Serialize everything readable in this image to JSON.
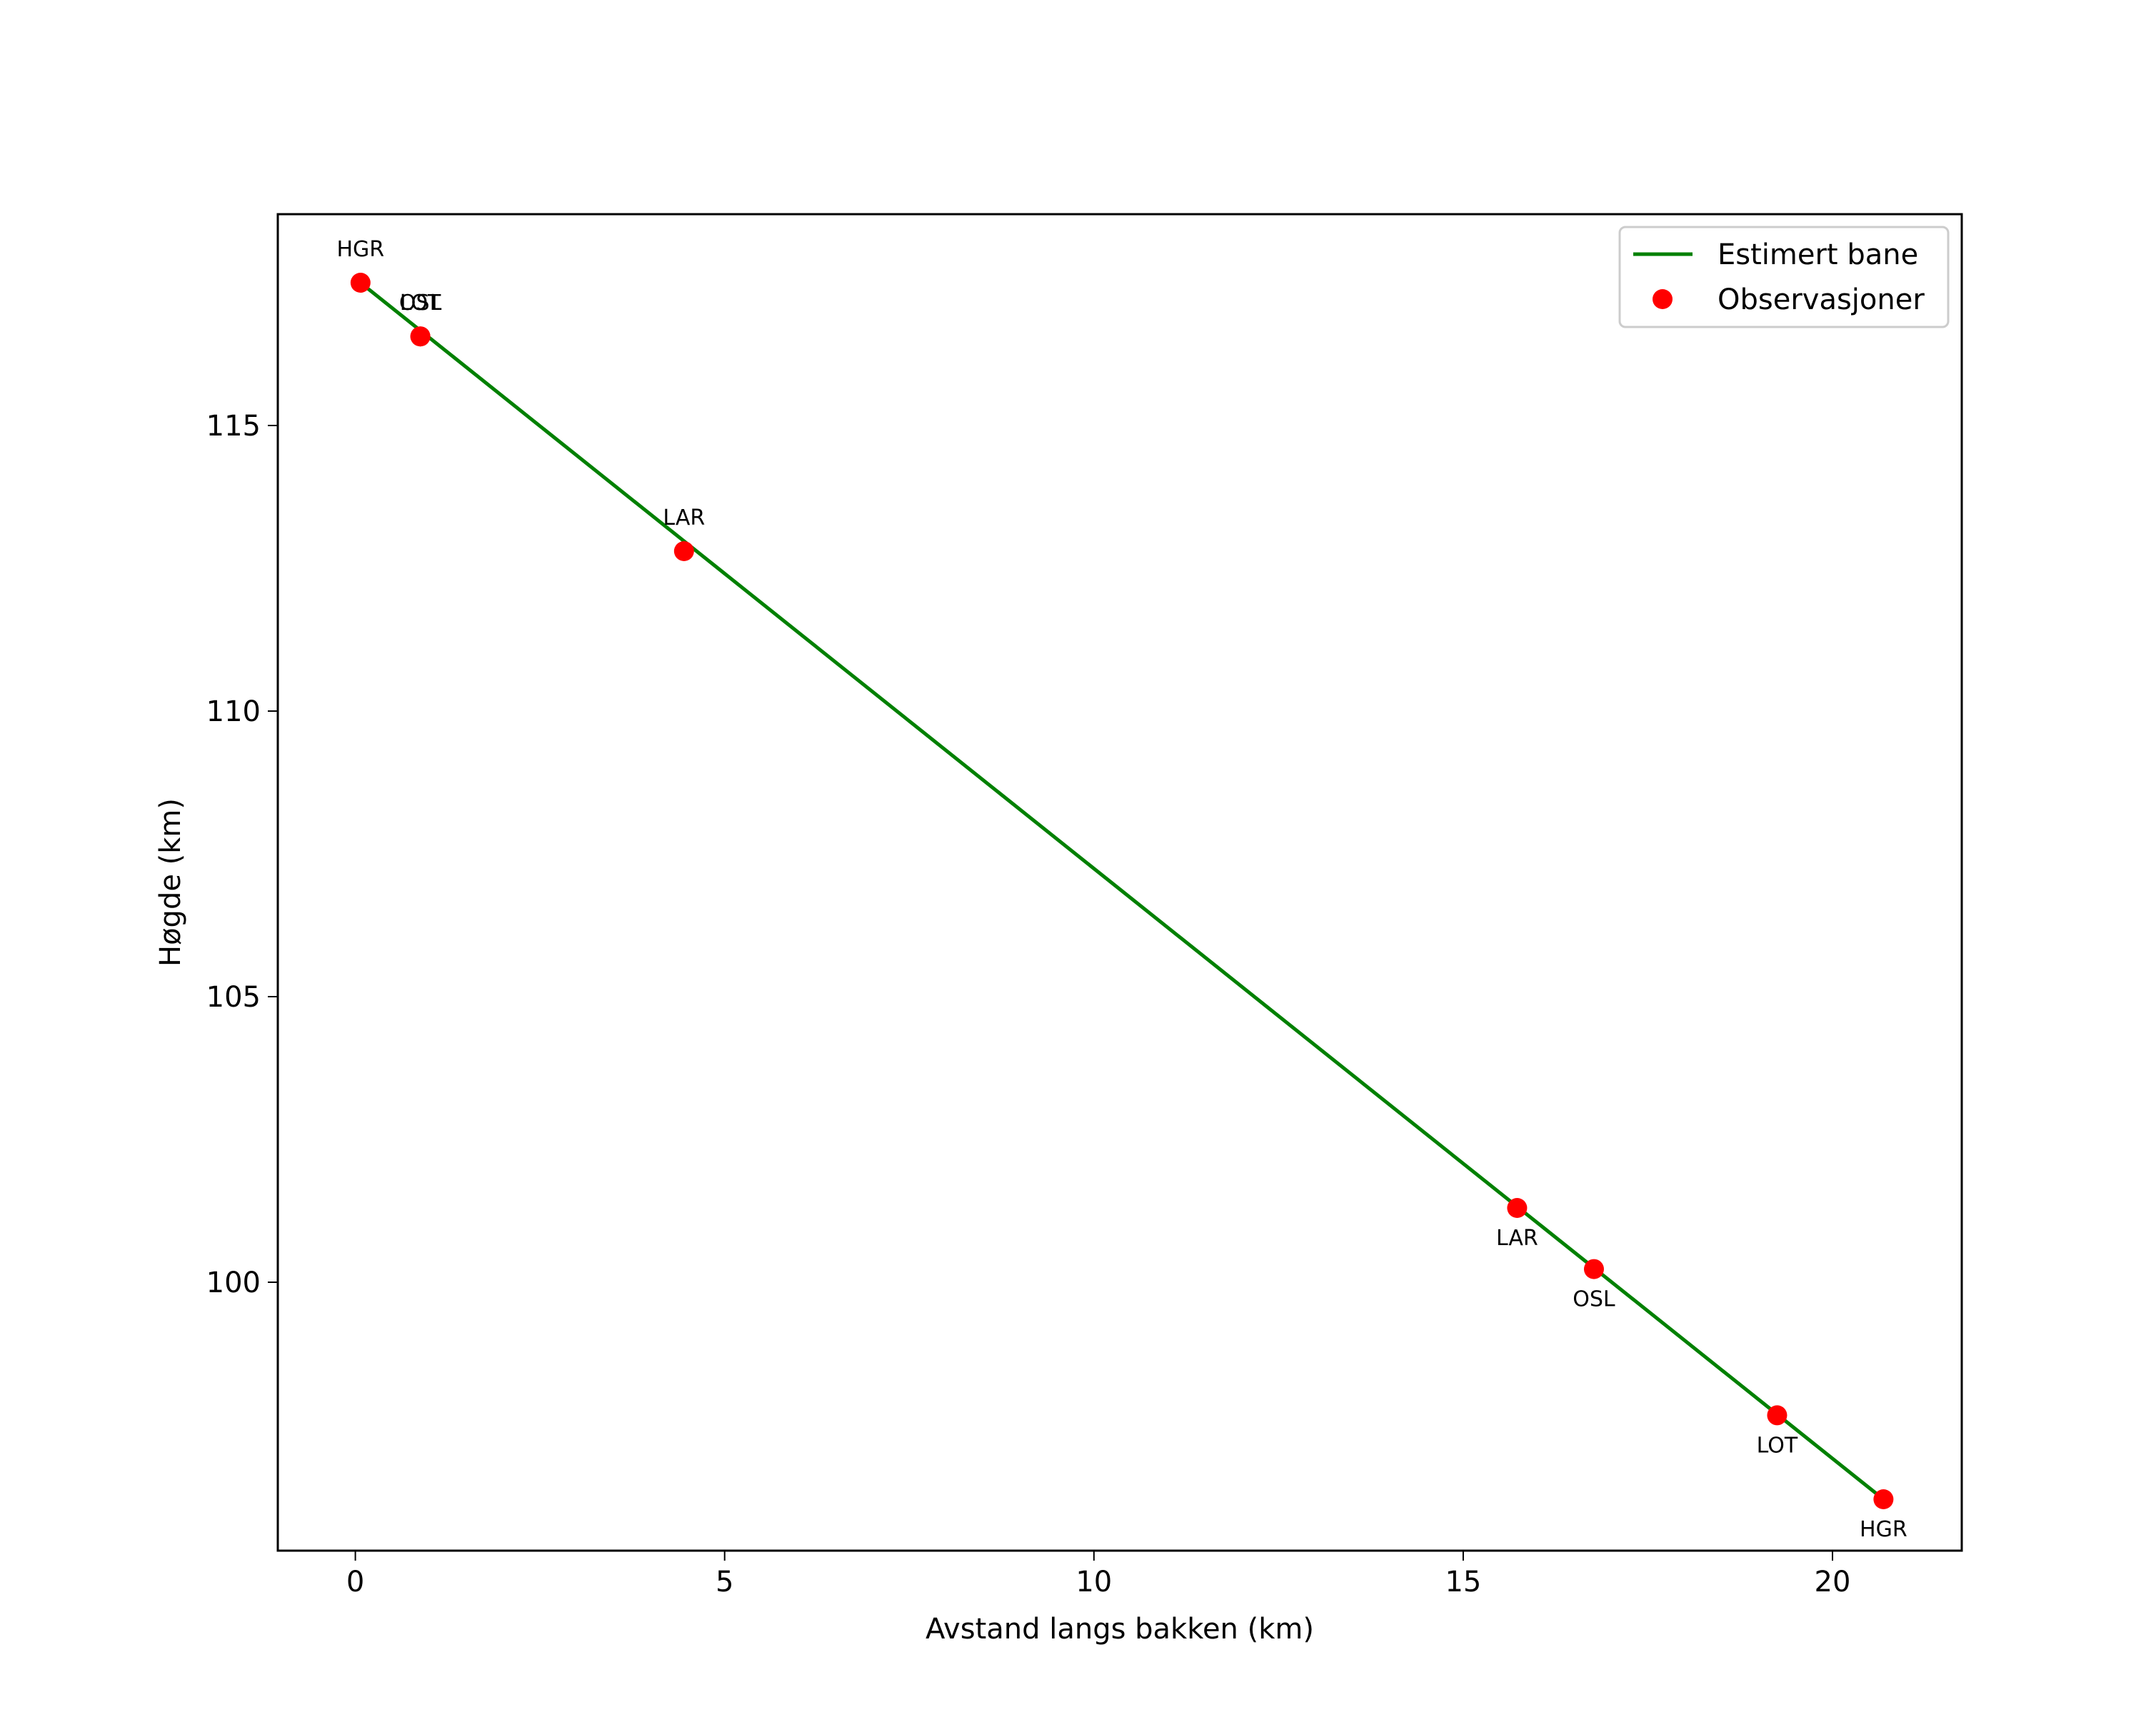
{
  "chart_data": {
    "type": "line",
    "title": "",
    "xlabel": "Avstand langs bakken (km)",
    "ylabel": "Høgde (km)",
    "xlim": [
      -1.05,
      21.75
    ],
    "ylim": [
      95.3,
      118.7
    ],
    "xticks": [
      0,
      5,
      10,
      15,
      20
    ],
    "yticks": [
      100,
      105,
      110,
      115
    ],
    "grid": false,
    "legend_position": "upper right",
    "legend": [
      "Estimert bane",
      "Observasjoner"
    ],
    "series": [
      {
        "name": "Estimert bane",
        "type": "line",
        "color": "#008000",
        "x": [
          0.07,
          20.69
        ],
        "y": [
          117.5,
          96.2
        ]
      },
      {
        "name": "Observasjoner",
        "type": "scatter",
        "color": "#ff0000",
        "points": [
          {
            "label": "HGR",
            "x": 0.07,
            "y": 117.5,
            "label_pos": "above"
          },
          {
            "label": "OSL",
            "x": 0.88,
            "y": 116.56,
            "label_pos": "above"
          },
          {
            "label": "LOT",
            "x": 0.88,
            "y": 116.56,
            "label_pos": "above"
          },
          {
            "label": "LAR",
            "x": 4.45,
            "y": 112.8,
            "label_pos": "above"
          },
          {
            "label": "LAR",
            "x": 15.73,
            "y": 101.3,
            "label_pos": "below"
          },
          {
            "label": "OSL",
            "x": 16.77,
            "y": 100.23,
            "label_pos": "below"
          },
          {
            "label": "LOT",
            "x": 19.25,
            "y": 97.67,
            "label_pos": "below"
          },
          {
            "label": "HGR",
            "x": 20.69,
            "y": 96.2,
            "label_pos": "below"
          }
        ]
      }
    ]
  },
  "axes": {
    "xlabel": "Avstand langs bakken (km)",
    "ylabel": "Høgde (km)",
    "xtick_labels": [
      "0",
      "5",
      "10",
      "15",
      "20"
    ],
    "ytick_labels": [
      "100",
      "105",
      "110",
      "115"
    ]
  },
  "legend": {
    "items": [
      {
        "label": "Estimert bane",
        "color": "#008000",
        "marker": "line"
      },
      {
        "label": "Observasjoner",
        "color": "#ff0000",
        "marker": "circle"
      }
    ]
  }
}
